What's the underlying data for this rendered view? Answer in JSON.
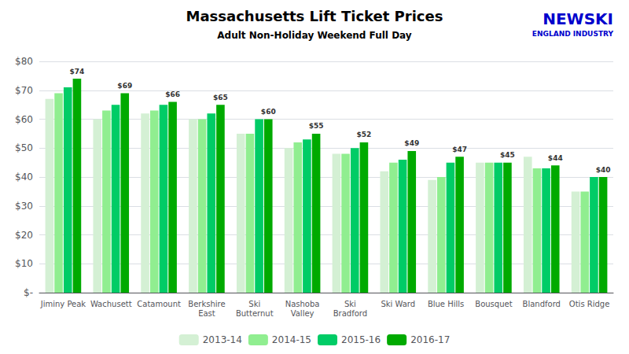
{
  "chart_data": {
    "type": "bar",
    "title": "Massachusetts Lift Ticket Prices",
    "subtitle": "Adult Non-Holiday Weekend Full Day",
    "categories": [
      "Jiminy Peak",
      "Wachusett",
      "Catamount",
      "Berkshire\nEast",
      "Ski\nButternut",
      "Nashoba\nValley",
      "Ski\nBradford",
      "Ski Ward",
      "Blue Hills",
      "Bousquet",
      "Blandford",
      "Otis Ridge"
    ],
    "series": [
      {
        "name": "2013-14",
        "color": "#d4f0d4",
        "values": [
          67,
          60,
          62,
          60,
          55,
          50,
          48,
          42,
          39,
          45,
          47,
          35
        ]
      },
      {
        "name": "2014-15",
        "color": "#90ee90",
        "values": [
          69,
          63,
          63,
          60,
          55,
          52,
          48,
          45,
          40,
          45,
          43,
          35
        ]
      },
      {
        "name": "2015-16",
        "color": "#00cc66",
        "values": [
          71,
          65,
          65,
          62,
          60,
          53,
          50,
          46,
          45,
          45,
          43,
          40
        ]
      },
      {
        "name": "2016-17",
        "color": "#00aa00",
        "values": [
          74,
          69,
          66,
          65,
          60,
          55,
          52,
          49,
          47,
          45,
          44,
          40
        ],
        "data_labels": true,
        "value_labels": [
          "$74",
          "$69",
          "$66",
          "$65",
          "$60",
          "$55",
          "$52",
          "$49",
          "$47",
          "$45",
          "$44",
          "$40"
        ]
      }
    ],
    "ylim": [
      0,
      80
    ],
    "yticks": [
      {
        "value": 0,
        "label": "$-"
      },
      {
        "value": 10,
        "label": "$10"
      },
      {
        "value": 20,
        "label": "$20"
      },
      {
        "value": 30,
        "label": "$30"
      },
      {
        "value": 40,
        "label": "$40"
      },
      {
        "value": 50,
        "label": "$50"
      },
      {
        "value": 60,
        "label": "$60"
      },
      {
        "value": 70,
        "label": "$70"
      },
      {
        "value": 80,
        "label": "$80"
      }
    ],
    "grid": true,
    "legend": "bottom",
    "annotations": [
      {
        "text": "NEWSKI",
        "color": "#0000cc"
      },
      {
        "text": "ENGLAND INDUSTRY",
        "color": "#0000cc"
      }
    ]
  }
}
